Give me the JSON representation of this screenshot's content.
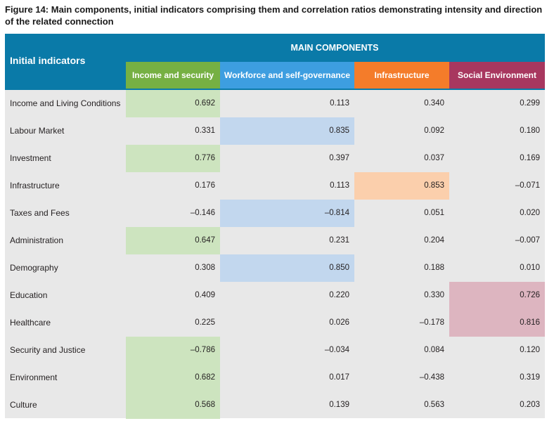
{
  "caption": "Figure 14: Main components, initial indicators comprising them and correlation ratios demonstrating intensity and direction of the related connection",
  "header": {
    "initial_indicators": "Initial indicators",
    "main_components": "MAIN COMPONENTS"
  },
  "colors": {
    "header_blue": "#0a7aa8",
    "income_header": "#76b043",
    "workforce_header": "#3d9ee0",
    "infrastructure_header": "#f47c2a",
    "social_header": "#a8375f",
    "income_highlight": "#cde4bf",
    "workforce_highlight": "#c2d7ee",
    "infrastructure_highlight": "#fbcfac",
    "social_highlight": "#ddb5c0",
    "table_bg": "#e8e8e8"
  },
  "columns": [
    {
      "label": "Income and security",
      "key": "income"
    },
    {
      "label": "Workforce and self-governance",
      "key": "workforce"
    },
    {
      "label": "Infrastructure",
      "key": "infrastructure"
    },
    {
      "label": "Social Environment",
      "key": "social"
    }
  ],
  "rows": [
    {
      "label": "Income and Living Conditions",
      "values": [
        "0.692",
        "0.113",
        "0.340",
        "0.299"
      ],
      "highlight": 0
    },
    {
      "label": "Labour Market",
      "values": [
        "0.331",
        "0.835",
        "0.092",
        "0.180"
      ],
      "highlight": 1
    },
    {
      "label": "Investment",
      "values": [
        "0.776",
        "0.397",
        "0.037",
        "0.169"
      ],
      "highlight": 0
    },
    {
      "label": "Infrastructure",
      "values": [
        "0.176",
        "0.113",
        "0.853",
        "–0.071"
      ],
      "highlight": 2
    },
    {
      "label": "Taxes and Fees",
      "values": [
        "–0.146",
        "–0.814",
        "0.051",
        "0.020"
      ],
      "highlight": 1
    },
    {
      "label": "Administration",
      "values": [
        "0.647",
        "0.231",
        "0.204",
        "–0.007"
      ],
      "highlight": 0
    },
    {
      "label": "Demography",
      "values": [
        "0.308",
        "0.850",
        "0.188",
        "0.010"
      ],
      "highlight": 1
    },
    {
      "label": "Education",
      "values": [
        "0.409",
        "0.220",
        "0.330",
        "0.726"
      ],
      "highlight": 3
    },
    {
      "label": "Healthcare",
      "values": [
        "0.225",
        "0.026",
        "–0.178",
        "0.816"
      ],
      "highlight": 3
    },
    {
      "label": "Security and Justice",
      "values": [
        "–0.786",
        "–0.034",
        "0.084",
        "0.120"
      ],
      "highlight": 0
    },
    {
      "label": "Environment",
      "values": [
        "0.682",
        "0.017",
        "–0.438",
        "0.319"
      ],
      "highlight": 0
    },
    {
      "label": "Culture",
      "values": [
        "0.568",
        "0.139",
        "0.563",
        "0.203"
      ],
      "highlight": 0
    }
  ]
}
